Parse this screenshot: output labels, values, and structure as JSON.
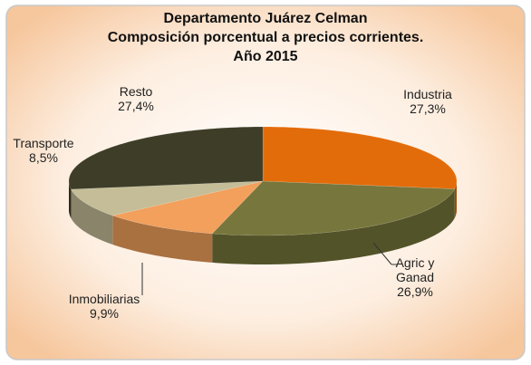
{
  "chart_data": {
    "type": "pie3d",
    "title": [
      "Departamento Juárez Celman",
      "Composición porcentual a precios corrientes.",
      "Año 2015"
    ],
    "categories": [
      "Industria",
      "Agric y Ganad",
      "Inmobiliarias",
      "Transporte",
      "Resto"
    ],
    "values": [
      27.3,
      26.9,
      9.9,
      8.5,
      27.4
    ],
    "value_labels": [
      "27,3%",
      "26,9%",
      "9,9%",
      "8,5%",
      "27,4%"
    ],
    "colors": [
      "#e36c0a",
      "#77763c",
      "#f2a05c",
      "#c4bd97",
      "#3d3d28"
    ]
  }
}
